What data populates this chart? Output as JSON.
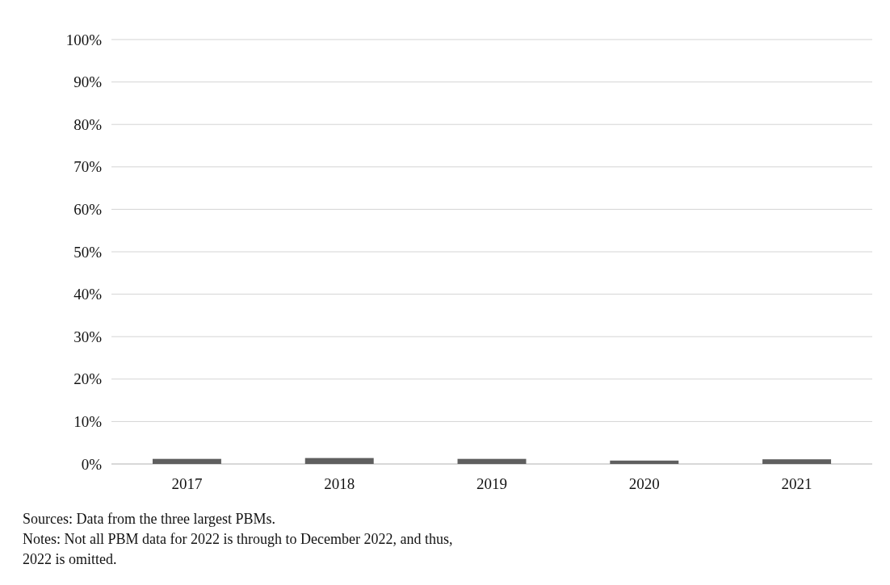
{
  "chart_data": {
    "type": "bar",
    "categories": [
      "2017",
      "2018",
      "2019",
      "2020",
      "2021"
    ],
    "values": [
      1.2,
      1.4,
      1.2,
      0.8,
      1.1
    ],
    "color": "#5f5f5f",
    "ylim": [
      0,
      100
    ],
    "yticks": [
      {
        "value": 0,
        "label": "0%"
      },
      {
        "value": 10,
        "label": "10%"
      },
      {
        "value": 20,
        "label": "20%"
      },
      {
        "value": 30,
        "label": "30%"
      },
      {
        "value": 40,
        "label": "40%"
      },
      {
        "value": 50,
        "label": "50%"
      },
      {
        "value": 60,
        "label": "60%"
      },
      {
        "value": 70,
        "label": "70%"
      },
      {
        "value": 80,
        "label": "80%"
      },
      {
        "value": 90,
        "label": "90%"
      },
      {
        "value": 100,
        "label": "100%"
      }
    ],
    "grid": "y",
    "annotations": [
      "Sources: Data from the three largest PBMs.",
      "Notes: Not all PBM data for 2022 is through to December 2022, and thus,",
      "2022 is omitted."
    ]
  }
}
